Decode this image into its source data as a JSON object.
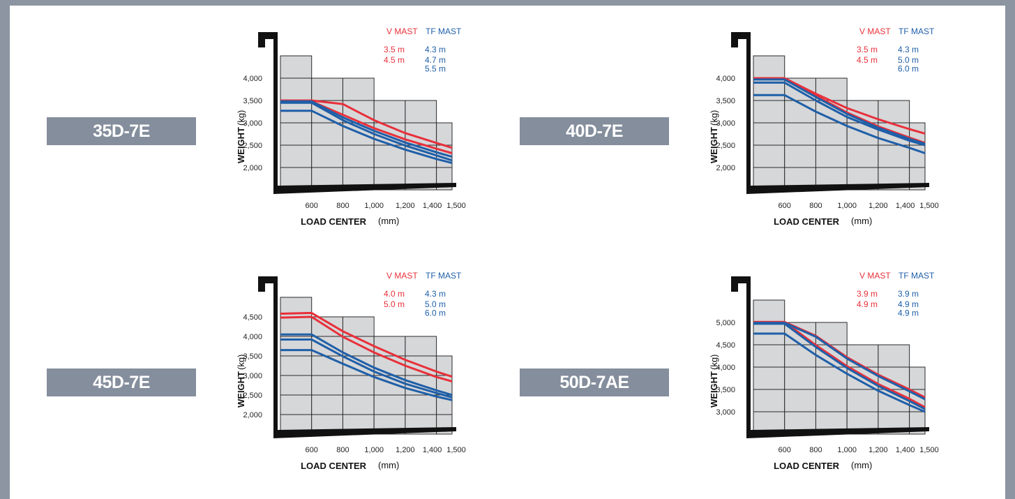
{
  "colors": {
    "v_mast": "#e8303a",
    "tf_mast": "#1f5fa8",
    "grid_fill": "#d6d7d9",
    "frame": "#8c95a1",
    "label_bg": "#848e9c"
  },
  "legend": {
    "v_mast_title": "V MAST",
    "tf_mast_title": "TF MAST"
  },
  "chart_data": [
    {
      "type": "line",
      "model": "35D-7E",
      "xlabel": "LOAD CENTER",
      "xunit": "(mm)",
      "ylabel": "WEIGHT",
      "yunit": "(kg)",
      "x_ticks": [
        "600",
        "800",
        "1,000",
        "1,200",
        "1,400",
        "1,500"
      ],
      "y_ticks": [
        {
          "value": 2000,
          "label": "2,000"
        },
        {
          "value": 2500,
          "label": "2,500"
        },
        {
          "value": 3000,
          "label": "3,000"
        },
        {
          "value": 3500,
          "label": "3,500"
        },
        {
          "value": 4000,
          "label": "4,000"
        }
      ],
      "ylim": [
        1500,
        5000
      ],
      "step_heights": [
        4500,
        4000,
        4000,
        3500,
        3500,
        3000
      ],
      "v_mast_labels": [
        "3.5 m",
        "4.5 m"
      ],
      "tf_mast_labels": [
        "4.3 m",
        "4.7 m",
        "5.5 m"
      ],
      "series": [
        {
          "name": "3.5 m",
          "group": "V MAST",
          "x": [
            400,
            600,
            800,
            1000,
            1200,
            1400,
            1500
          ],
          "y": [
            3500,
            3500,
            3420,
            3060,
            2770,
            2550,
            2440
          ]
        },
        {
          "name": "4.5 m",
          "group": "V MAST",
          "x": [
            400,
            600,
            800,
            1000,
            1200,
            1400,
            1500
          ],
          "y": [
            3480,
            3480,
            3180,
            2880,
            2630,
            2420,
            2320
          ]
        },
        {
          "name": "4.3 m",
          "group": "TF MAST",
          "x": [
            400,
            600,
            800,
            1000,
            1200,
            1400,
            1500
          ],
          "y": [
            3480,
            3480,
            3120,
            2820,
            2560,
            2340,
            2240
          ]
        },
        {
          "name": "4.7 m",
          "group": "TF MAST",
          "x": [
            400,
            600,
            800,
            1000,
            1200,
            1400,
            1500
          ],
          "y": [
            3450,
            3450,
            3060,
            2750,
            2490,
            2270,
            2160
          ]
        },
        {
          "name": "5.5 m",
          "group": "TF MAST",
          "x": [
            400,
            600,
            800,
            1000,
            1200,
            1400,
            1500
          ],
          "y": [
            3270,
            3270,
            2930,
            2640,
            2400,
            2190,
            2100
          ]
        }
      ]
    },
    {
      "type": "line",
      "model": "40D-7E",
      "xlabel": "LOAD CENTER",
      "xunit": "(mm)",
      "ylabel": "WEIGHT",
      "yunit": "(kg)",
      "x_ticks": [
        "600",
        "800",
        "1,000",
        "1,200",
        "1,400",
        "1,500"
      ],
      "y_ticks": [
        {
          "value": 2000,
          "label": "2,000"
        },
        {
          "value": 2500,
          "label": "2,500"
        },
        {
          "value": 3000,
          "label": "3,000"
        },
        {
          "value": 3500,
          "label": "3,500"
        },
        {
          "value": 4000,
          "label": "4,000"
        }
      ],
      "ylim": [
        1500,
        5000
      ],
      "step_heights": [
        4500,
        4000,
        4000,
        3500,
        3500,
        3000
      ],
      "v_mast_labels": [
        "3.5 m",
        "4.5 m"
      ],
      "tf_mast_labels": [
        "4.3 m",
        "5.0 m",
        "6.0 m"
      ],
      "series": [
        {
          "name": "3.5 m",
          "group": "V MAST",
          "x": [
            400,
            600,
            800,
            1000,
            1200,
            1400,
            1500
          ],
          "y": [
            4000,
            4000,
            3650,
            3330,
            3080,
            2860,
            2760
          ]
        },
        {
          "name": "4.5 m",
          "group": "V MAST",
          "x": [
            400,
            600,
            800,
            1000,
            1200,
            1400,
            1500
          ],
          "y": [
            3980,
            3980,
            3610,
            3230,
            2920,
            2670,
            2550
          ]
        },
        {
          "name": "4.3 m",
          "group": "TF MAST",
          "x": [
            400,
            600,
            800,
            1000,
            1200,
            1400,
            1500
          ],
          "y": [
            3970,
            3970,
            3580,
            3200,
            2890,
            2640,
            2530
          ]
        },
        {
          "name": "5.0 m",
          "group": "TF MAST",
          "x": [
            400,
            600,
            800,
            1000,
            1200,
            1400,
            1500
          ],
          "y": [
            3900,
            3900,
            3500,
            3130,
            2850,
            2600,
            2500
          ]
        },
        {
          "name": "6.0 m",
          "group": "TF MAST",
          "x": [
            400,
            600,
            800,
            1000,
            1200,
            1400,
            1500
          ],
          "y": [
            3620,
            3620,
            3250,
            2930,
            2660,
            2440,
            2320
          ]
        }
      ]
    },
    {
      "type": "line",
      "model": "45D-7E",
      "xlabel": "LOAD CENTER",
      "xunit": "(mm)",
      "ylabel": "WEIGHT",
      "yunit": "(kg)",
      "x_ticks": [
        "600",
        "800",
        "1,000",
        "1,200",
        "1,400",
        "1,500"
      ],
      "y_ticks": [
        {
          "value": 2000,
          "label": "2,000"
        },
        {
          "value": 2500,
          "label": "2,500"
        },
        {
          "value": 3000,
          "label": "3,000"
        },
        {
          "value": 3500,
          "label": "3,500"
        },
        {
          "value": 4000,
          "label": "4,000"
        },
        {
          "value": 4500,
          "label": "4,500"
        }
      ],
      "ylim": [
        1500,
        5500
      ],
      "step_heights": [
        5000,
        4500,
        4500,
        4000,
        4000,
        3500
      ],
      "v_mast_labels": [
        "4.0 m",
        "5.0 m"
      ],
      "tf_mast_labels": [
        "4.3 m",
        "5.0 m",
        "6.0 m"
      ],
      "series": [
        {
          "name": "4.0 m",
          "group": "V MAST",
          "x": [
            400,
            600,
            800,
            1000,
            1200,
            1400,
            1500
          ],
          "y": [
            4580,
            4600,
            4130,
            3750,
            3400,
            3100,
            2970
          ]
        },
        {
          "name": "5.0 m",
          "group": "V MAST",
          "x": [
            400,
            600,
            800,
            1000,
            1200,
            1400,
            1500
          ],
          "y": [
            4480,
            4500,
            3990,
            3590,
            3250,
            2960,
            2850
          ]
        },
        {
          "name": "4.3 m",
          "group": "TF MAST",
          "x": [
            400,
            600,
            800,
            1000,
            1200,
            1400,
            1500
          ],
          "y": [
            4050,
            4050,
            3590,
            3200,
            2880,
            2620,
            2500
          ]
        },
        {
          "name": "5.0 m",
          "group": "TF MAST",
          "x": [
            400,
            600,
            800,
            1000,
            1200,
            1400,
            1500
          ],
          "y": [
            3920,
            3920,
            3490,
            3100,
            2790,
            2550,
            2440
          ]
        },
        {
          "name": "6.0 m",
          "group": "TF MAST",
          "x": [
            400,
            600,
            800,
            1000,
            1200,
            1400,
            1500
          ],
          "y": [
            3650,
            3650,
            3300,
            2960,
            2680,
            2460,
            2370
          ]
        }
      ]
    },
    {
      "type": "line",
      "model": "50D-7AE",
      "xlabel": "LOAD CENTER",
      "xunit": "(mm)",
      "ylabel": "WEIGHT",
      "yunit": "(kg)",
      "x_ticks": [
        "600",
        "800",
        "1,000",
        "1,200",
        "1,400",
        "1,500"
      ],
      "y_ticks": [
        {
          "value": 3000,
          "label": "3,000"
        },
        {
          "value": 3500,
          "label": "3,500"
        },
        {
          "value": 4000,
          "label": "4,000"
        },
        {
          "value": 4500,
          "label": "4,500"
        },
        {
          "value": 5000,
          "label": "5,000"
        }
      ],
      "ylim": [
        2500,
        6000
      ],
      "step_heights": [
        5500,
        5000,
        5000,
        4500,
        4500,
        4000
      ],
      "v_mast_labels": [
        "3.9 m",
        "4.9 m"
      ],
      "tf_mast_labels": [
        "3.9 m",
        "4.9 m",
        "4.9 m"
      ],
      "series": [
        {
          "name": "3.9 m",
          "group": "V MAST",
          "x": [
            400,
            600,
            800,
            1000,
            1200,
            1400,
            1500
          ],
          "y": [
            5010,
            5010,
            4700,
            4220,
            3830,
            3500,
            3320
          ]
        },
        {
          "name": "4.9 m",
          "group": "V MAST",
          "x": [
            400,
            600,
            800,
            1000,
            1200,
            1400,
            1500
          ],
          "y": [
            5010,
            5010,
            4490,
            4020,
            3620,
            3290,
            3100
          ]
        },
        {
          "name": "3.9 m",
          "group": "TF MAST",
          "x": [
            400,
            600,
            800,
            1000,
            1200,
            1400,
            1500
          ],
          "y": [
            4990,
            4990,
            4680,
            4190,
            3800,
            3460,
            3280
          ]
        },
        {
          "name": "4.9 m",
          "group": "TF MAST",
          "x": [
            400,
            600,
            800,
            1000,
            1200,
            1400,
            1500
          ],
          "y": [
            4970,
            4970,
            4450,
            3980,
            3580,
            3240,
            3060
          ]
        },
        {
          "name": "4.9 m",
          "group": "TF MAST",
          "x": [
            400,
            600,
            800,
            1000,
            1200,
            1400,
            1500
          ],
          "y": [
            4750,
            4750,
            4270,
            3850,
            3470,
            3150,
            3000
          ]
        }
      ]
    }
  ]
}
